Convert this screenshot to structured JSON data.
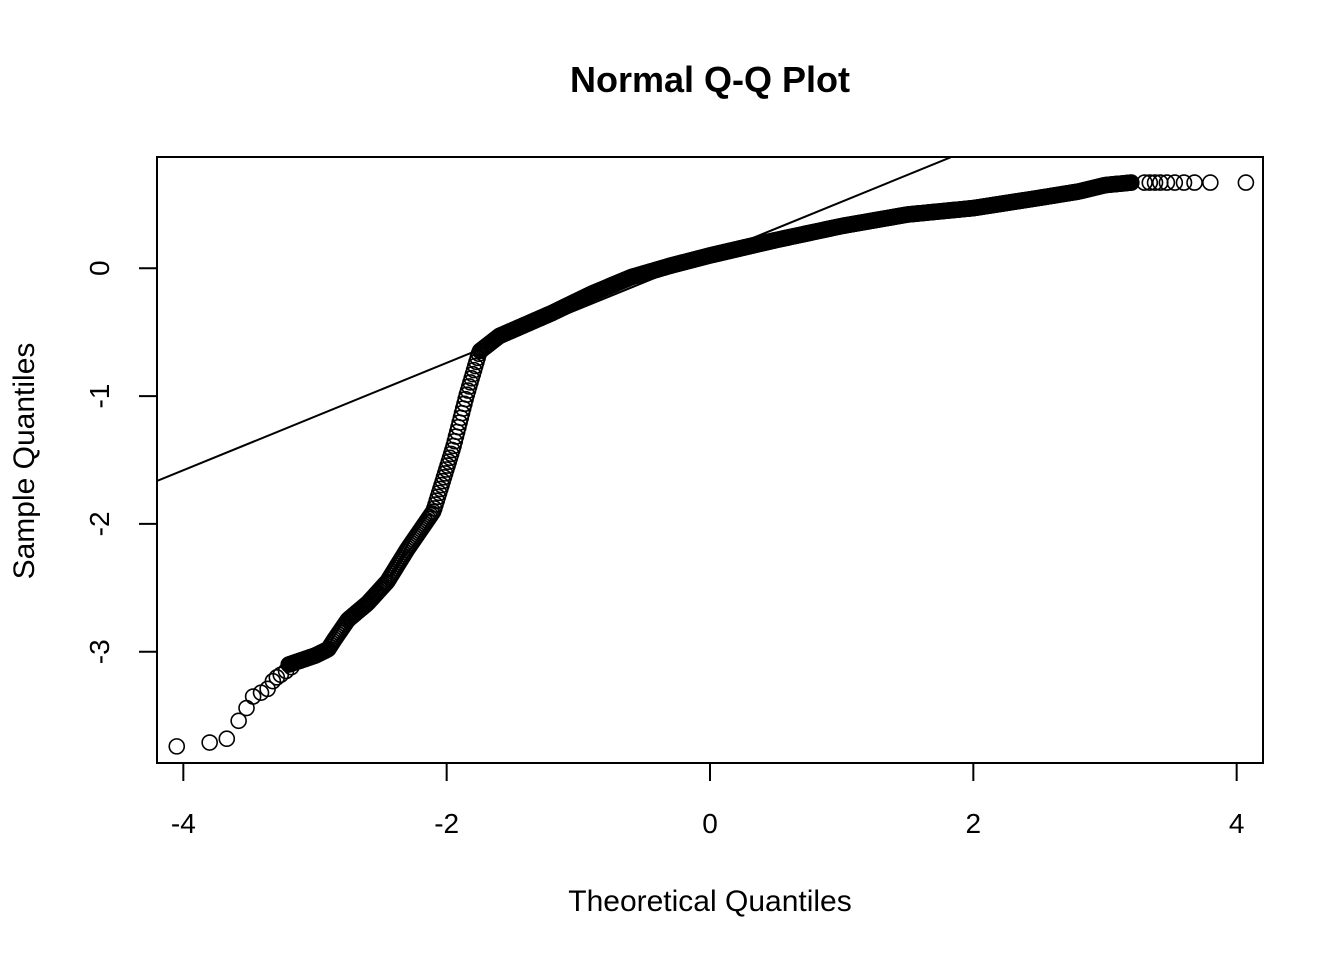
{
  "chart_data": {
    "type": "scatter",
    "title": "Normal Q-Q Plot",
    "xlabel": "Theoretical Quantiles",
    "ylabel": "Sample Quantiles",
    "xlim": [
      -4.2,
      4.2
    ],
    "ylim": [
      -3.87,
      0.87
    ],
    "xticks": [
      -4,
      -2,
      0,
      2,
      4
    ],
    "yticks": [
      -3,
      -2,
      -1,
      0
    ],
    "xtick_labels": [
      "-4",
      "-2",
      "0",
      "2",
      "4"
    ],
    "ytick_labels": [
      "-3",
      "-2",
      "-1",
      "0"
    ],
    "grid": false,
    "legend": "none",
    "marker": "open-circle",
    "reference_line": {
      "slope": 0.42,
      "intercept": 0.1
    },
    "curve": [
      [
        -3.2,
        -3.1
      ],
      [
        -3.0,
        -3.03
      ],
      [
        -2.9,
        -2.98
      ],
      [
        -2.85,
        -2.9
      ],
      [
        -2.75,
        -2.75
      ],
      [
        -2.6,
        -2.62
      ],
      [
        -2.45,
        -2.45
      ],
      [
        -2.3,
        -2.2
      ],
      [
        -2.1,
        -1.9
      ],
      [
        -1.95,
        -1.4
      ],
      [
        -1.85,
        -1.0
      ],
      [
        -1.75,
        -0.65
      ],
      [
        -1.6,
        -0.53
      ],
      [
        -1.2,
        -0.35
      ],
      [
        -0.9,
        -0.2
      ],
      [
        -0.6,
        -0.07
      ],
      [
        -0.3,
        0.02
      ],
      [
        0.0,
        0.1
      ],
      [
        0.5,
        0.22
      ],
      [
        1.0,
        0.33
      ],
      [
        1.5,
        0.42
      ],
      [
        2.0,
        0.47
      ],
      [
        2.5,
        0.55
      ],
      [
        2.8,
        0.6
      ],
      [
        3.0,
        0.65
      ],
      [
        3.2,
        0.67
      ]
    ],
    "outliers": [
      [
        -4.05,
        -3.74
      ],
      [
        -3.8,
        -3.71
      ],
      [
        -3.67,
        -3.68
      ],
      [
        -3.58,
        -3.54
      ],
      [
        -3.52,
        -3.44
      ],
      [
        -3.47,
        -3.35
      ],
      [
        -3.41,
        -3.32
      ],
      [
        -3.36,
        -3.29
      ],
      [
        -3.32,
        -3.23
      ],
      [
        -3.29,
        -3.2
      ],
      [
        -3.26,
        -3.18
      ],
      [
        -3.22,
        -3.15
      ],
      [
        -3.18,
        -3.12
      ],
      [
        3.3,
        0.67
      ],
      [
        3.34,
        0.67
      ],
      [
        3.38,
        0.67
      ],
      [
        3.42,
        0.67
      ],
      [
        3.47,
        0.67
      ],
      [
        3.53,
        0.67
      ],
      [
        3.6,
        0.67
      ],
      [
        3.68,
        0.67
      ],
      [
        3.8,
        0.67
      ],
      [
        4.07,
        0.67
      ]
    ]
  }
}
